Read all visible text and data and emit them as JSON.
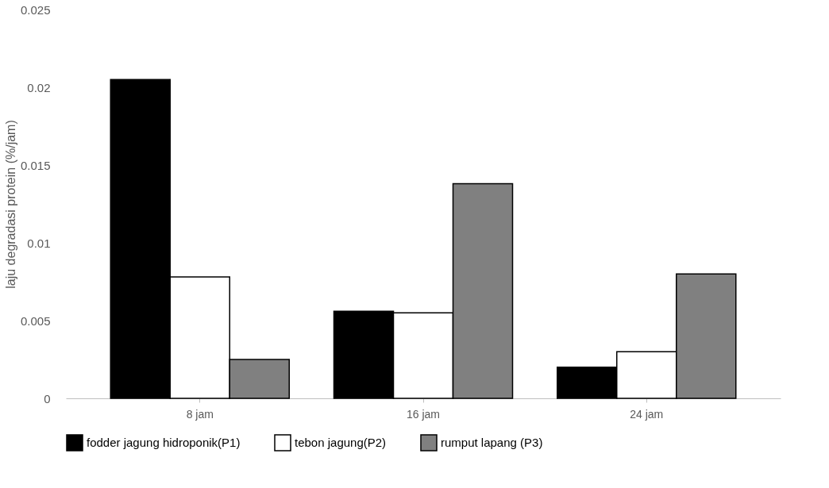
{
  "chart_data": {
    "type": "bar",
    "ylabel": "laju degradasi protein (%/jam)",
    "categories": [
      "8 jam",
      "16 jam",
      "24 jam"
    ],
    "series": [
      {
        "name": "fodder jagung hidroponik(P1)",
        "color": "#000000",
        "values": [
          0.0205,
          0.0056,
          0.002
        ]
      },
      {
        "name": "tebon jagung(P2)",
        "color": "#ffffff",
        "values": [
          0.0078,
          0.0055,
          0.003
        ]
      },
      {
        "name": "rumput lapang (P3)",
        "color": "#808080",
        "values": [
          0.0025,
          0.0138,
          0.008
        ]
      }
    ],
    "ylim": [
      0,
      0.025
    ],
    "yticks": [
      0,
      0.005,
      0.01,
      0.015,
      0.02,
      0.025
    ],
    "grid": false,
    "legend": "bottom"
  }
}
